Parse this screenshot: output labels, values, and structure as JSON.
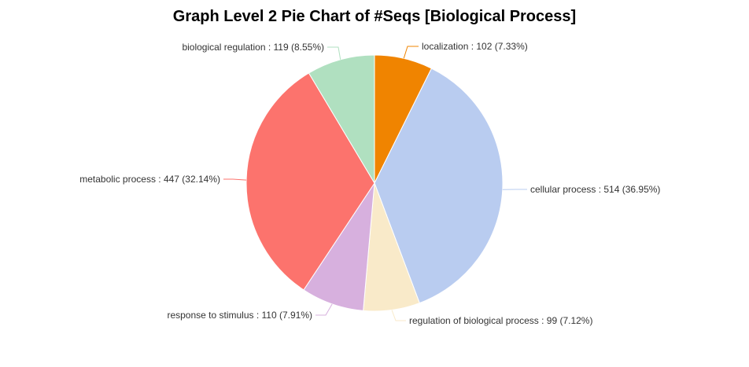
{
  "chart_data": {
    "type": "pie",
    "title": "Graph Level 2 Pie Chart of #Seqs [Biological Process]",
    "slices": [
      {
        "label": "localization : 102 (7.33%)",
        "name": "localization",
        "value": 102,
        "percent": 7.33,
        "color": "#f08400"
      },
      {
        "label": "cellular process : 514 (36.95%)",
        "name": "cellular process",
        "value": 514,
        "percent": 36.95,
        "color": "#b9ccf0"
      },
      {
        "label": "regulation of biological process : 99 (7.12%)",
        "name": "regulation of biological process",
        "value": 99,
        "percent": 7.12,
        "color": "#f9eac9"
      },
      {
        "label": "response to stimulus : 110 (7.91%)",
        "name": "response to stimulus",
        "value": 110,
        "percent": 7.91,
        "color": "#d7b0de"
      },
      {
        "label": "metabolic process : 447 (32.14%)",
        "name": "metabolic process",
        "value": 447,
        "percent": 32.14,
        "color": "#fc736d"
      },
      {
        "label": "biological regulation : 119 (8.55%)",
        "name": "biological regulation",
        "value": 119,
        "percent": 8.55,
        "color": "#b0e0c0"
      }
    ]
  }
}
